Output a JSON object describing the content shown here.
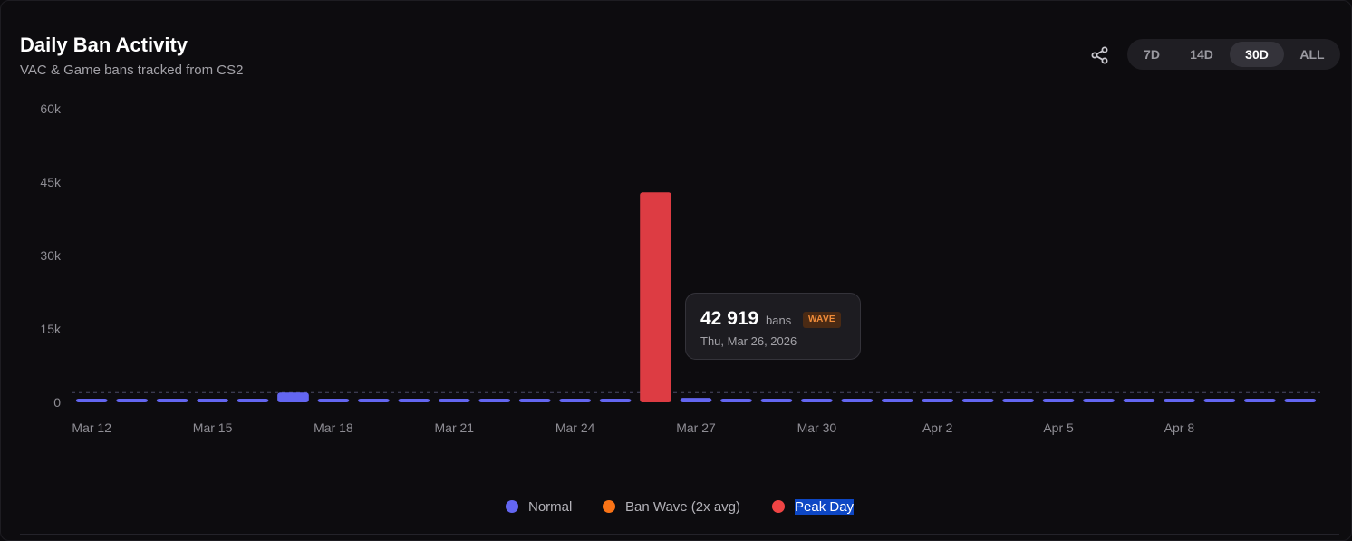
{
  "header": {
    "title": "Daily Ban Activity",
    "subtitle": "VAC & Game bans tracked from CS2"
  },
  "icons": {
    "share": "share-icon"
  },
  "range_options": [
    {
      "label": "7D",
      "active": false
    },
    {
      "label": "14D",
      "active": false
    },
    {
      "label": "30D",
      "active": true
    },
    {
      "label": "ALL",
      "active": false
    }
  ],
  "chart_data": {
    "type": "bar",
    "categories": [
      "Mar 12",
      "Mar 13",
      "Mar 14",
      "Mar 15",
      "Mar 16",
      "Mar 17",
      "Mar 18",
      "Mar 19",
      "Mar 20",
      "Mar 21",
      "Mar 22",
      "Mar 23",
      "Mar 24",
      "Mar 25",
      "Mar 26",
      "Mar 27",
      "Mar 28",
      "Mar 29",
      "Mar 30",
      "Mar 31",
      "Apr 1",
      "Apr 2",
      "Apr 3",
      "Apr 4",
      "Apr 5",
      "Apr 6",
      "Apr 7",
      "Apr 8",
      "Apr 9",
      "Apr 10",
      "Apr 11"
    ],
    "tick_labels": [
      "Mar 12",
      "Mar 15",
      "Mar 18",
      "Mar 21",
      "Mar 24",
      "Mar 27",
      "Mar 30",
      "Apr 2",
      "Apr 5",
      "Apr 8"
    ],
    "values": [
      600,
      620,
      610,
      630,
      640,
      2000,
      600,
      610,
      620,
      600,
      610,
      630,
      620,
      600,
      42919,
      900,
      610,
      600,
      620,
      630,
      610,
      600,
      620,
      610,
      600,
      630,
      620,
      600,
      610,
      620,
      600
    ],
    "types": [
      "normal",
      "normal",
      "normal",
      "normal",
      "normal",
      "normal",
      "normal",
      "normal",
      "normal",
      "normal",
      "normal",
      "normal",
      "normal",
      "normal",
      "peak",
      "normal",
      "normal",
      "normal",
      "normal",
      "normal",
      "normal",
      "normal",
      "normal",
      "normal",
      "normal",
      "normal",
      "normal",
      "normal",
      "normal",
      "normal",
      "normal"
    ],
    "ylim": [
      0,
      60000
    ],
    "yticks": [
      0,
      15000,
      30000,
      45000,
      60000
    ],
    "ytick_labels": [
      "0",
      "15k",
      "30k",
      "45k",
      "60k"
    ],
    "reference_line": 2000,
    "xlabel": "",
    "ylabel": "",
    "grid": false,
    "legend": [
      {
        "name": "Normal",
        "color": "#6366f1"
      },
      {
        "name": "Ban Wave (2x avg)",
        "color": "#f97316"
      },
      {
        "name": "Peak Day",
        "color": "#ef4444"
      }
    ],
    "colors": {
      "normal": "#6366f1",
      "wave": "#f97316",
      "peak": "#dd3c43"
    }
  },
  "tooltip": {
    "value": "42 919",
    "unit": "bans",
    "badge": "WAVE",
    "date": "Thu, Mar 26, 2026"
  }
}
